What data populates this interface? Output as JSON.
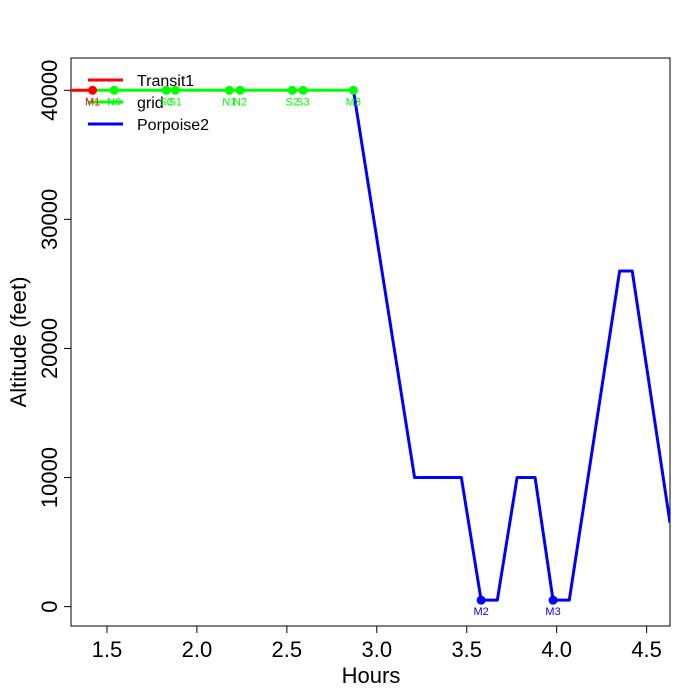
{
  "chart_data": {
    "type": "line",
    "xlabel": "Hours",
    "ylabel": "Altitude (feet)",
    "xlim": [
      1.3,
      4.63
    ],
    "ylim": [
      -1500,
      42500
    ],
    "x_ticks": [
      1.5,
      2.0,
      2.5,
      3.0,
      3.5,
      4.0,
      4.5
    ],
    "x_tick_labels": [
      "1.5",
      "2.0",
      "2.5",
      "3.0",
      "3.5",
      "4.0",
      "4.5"
    ],
    "y_ticks": [
      0,
      10000,
      20000,
      30000,
      40000
    ],
    "y_tick_labels": [
      "0",
      "10000",
      "20000",
      "30000",
      "40000"
    ],
    "legend": {
      "position": "top-left",
      "entries": [
        {
          "label": "Transit1",
          "color": "#ff0000"
        },
        {
          "label": "grid",
          "color": "#00ff00"
        },
        {
          "label": "Porpoise2",
          "color": "#0000ff"
        }
      ]
    },
    "series": [
      {
        "name": "Transit1",
        "color": "#ff0000",
        "x": [
          1.3,
          1.42
        ],
        "y": [
          40000,
          40000
        ],
        "points": [
          {
            "x": 1.42,
            "y": 40000,
            "label": "M1"
          }
        ]
      },
      {
        "name": "grid",
        "color": "#00ff00",
        "x": [
          1.42,
          2.87
        ],
        "y": [
          40000,
          40000
        ],
        "points": [
          {
            "x": 1.54,
            "y": 40000,
            "label": "N0"
          },
          {
            "x": 1.83,
            "y": 40000,
            "label": "S0"
          },
          {
            "x": 1.88,
            "y": 40000,
            "label": "S1"
          },
          {
            "x": 2.18,
            "y": 40000,
            "label": "N1"
          },
          {
            "x": 2.24,
            "y": 40000,
            "label": "N2"
          },
          {
            "x": 2.53,
            "y": 40000,
            "label": "S2"
          },
          {
            "x": 2.59,
            "y": 40000,
            "label": "S3"
          },
          {
            "x": 2.87,
            "y": 40000,
            "label": "M3"
          }
        ]
      },
      {
        "name": "Porpoise2",
        "color": "#0000ff",
        "x": [
          2.87,
          3.21,
          3.47,
          3.58,
          3.67,
          3.78,
          3.88,
          3.98,
          4.07,
          4.35,
          4.42,
          4.63
        ],
        "y": [
          40000,
          10000,
          10000,
          500,
          500,
          10000,
          10000,
          500,
          500,
          26000,
          26000,
          6500
        ],
        "points": [
          {
            "x": 3.58,
            "y": 500,
            "label": "M2"
          },
          {
            "x": 3.98,
            "y": 500,
            "label": "M3"
          }
        ]
      }
    ]
  }
}
